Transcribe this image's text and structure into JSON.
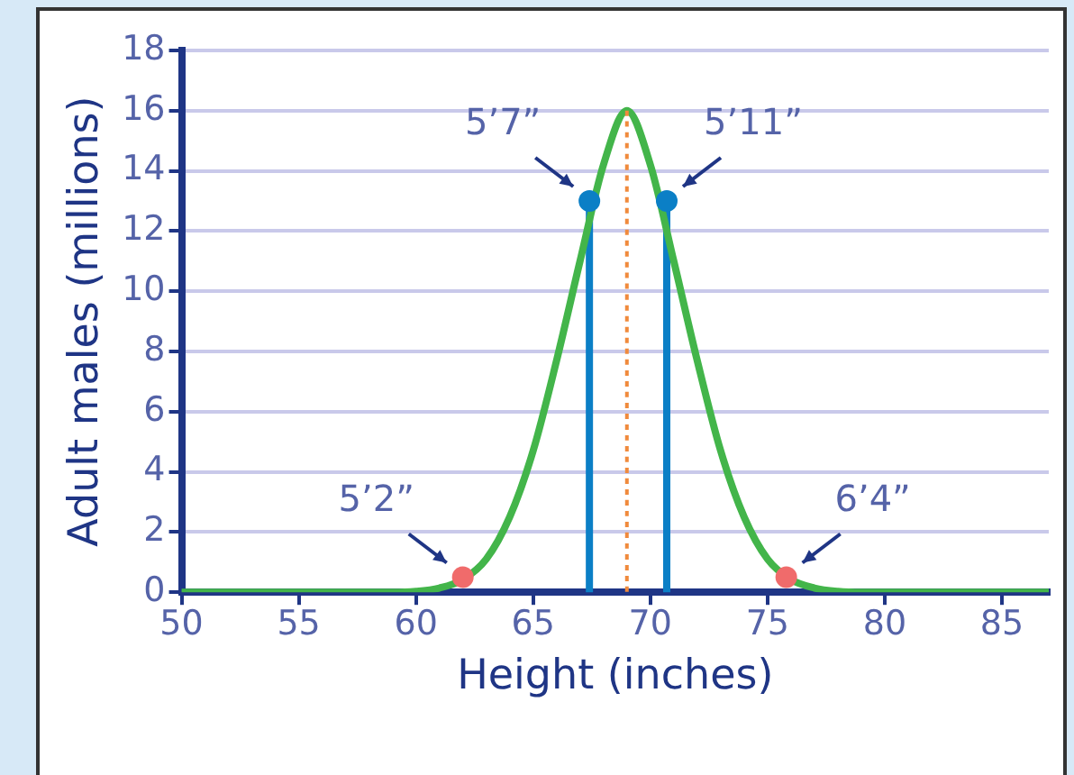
{
  "chart_data": {
    "type": "line",
    "xlabel": "Height (inches)",
    "ylabel": "Adult males (millions)",
    "xlim": [
      50,
      87
    ],
    "xticks": [
      50,
      55,
      60,
      65,
      70,
      75,
      80,
      85
    ],
    "ylim": [
      0,
      18
    ],
    "yticks": [
      0,
      2,
      4,
      6,
      8,
      10,
      12,
      14,
      16,
      18
    ],
    "grid": "y",
    "legend": false,
    "marker": "none",
    "line_style": "solid",
    "series": [
      {
        "color": "#43b54a",
        "x": [
          50,
          55,
          59,
          60,
          61,
          62,
          63,
          64,
          65,
          66,
          67,
          68,
          69,
          70,
          71,
          72,
          73,
          74,
          75,
          76,
          77,
          78,
          79,
          83,
          87
        ],
        "values": [
          0,
          0,
          0,
          0.03,
          0.14,
          0.42,
          1.1,
          2.5,
          4.7,
          7.7,
          11,
          14.2,
          16,
          14.2,
          11,
          7.7,
          4.7,
          2.5,
          1.1,
          0.42,
          0.14,
          0.03,
          0,
          0,
          0
        ]
      },
      {
        "color": "#0b7fc6",
        "x": [
          67.4,
          67.4
        ],
        "values": [
          0,
          13
        ]
      },
      {
        "color": "#0b7fc6",
        "x": [
          70.7,
          70.7
        ],
        "values": [
          0,
          13
        ]
      },
      {
        "color": "#f08a3c",
        "line_style": "dotted",
        "x": [
          69,
          69
        ],
        "values": [
          16,
          0
        ]
      },
      {
        "type": "scatter",
        "color": "#0b7fc6",
        "marker": "circle",
        "x": [
          67.4,
          70.7
        ],
        "values": [
          13,
          13
        ]
      },
      {
        "type": "scatter",
        "color": "#f06b6b",
        "marker": "circle",
        "x": [
          62,
          75.8
        ],
        "values": [
          0.5,
          0.5
        ]
      }
    ],
    "annotations": [
      {
        "text": "5’2”",
        "x": 62,
        "y": 0.5
      },
      {
        "text": "5’7”",
        "x": 67.4,
        "y": 13
      },
      {
        "text": "5’11”",
        "x": 70.7,
        "y": 13
      },
      {
        "text": "6’4”",
        "x": 75.8,
        "y": 0.5
      }
    ]
  }
}
